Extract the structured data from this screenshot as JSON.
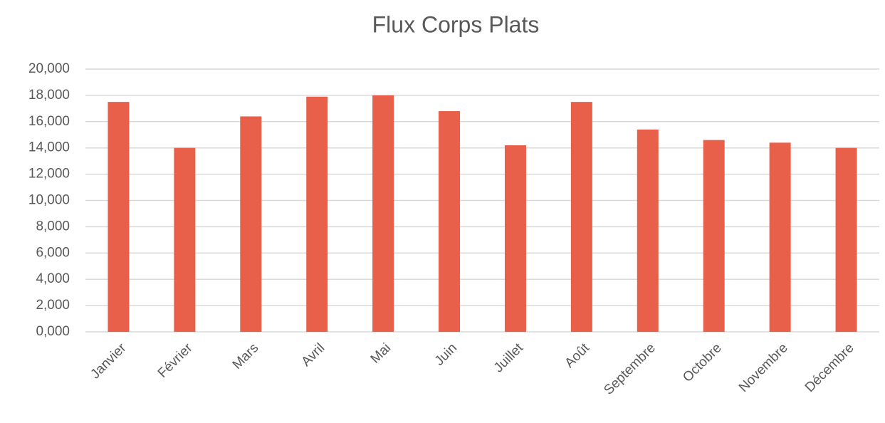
{
  "chart_data": {
    "type": "bar",
    "title": "Flux Corps Plats",
    "categories": [
      "Janvier",
      "Février",
      "Mars",
      "Avril",
      "Mai",
      "Juin",
      "Juillet",
      "Août",
      "Septembre",
      "Octobre",
      "Novembre",
      "Décembre"
    ],
    "values": [
      17.5,
      14.0,
      16.4,
      17.9,
      18.0,
      16.8,
      14.2,
      17.5,
      15.4,
      14.6,
      14.4,
      14.0
    ],
    "color": "#e8604a",
    "ylim": [
      0,
      20
    ],
    "yticks": [
      {
        "value": 0,
        "label": "0,000"
      },
      {
        "value": 2,
        "label": "2,000"
      },
      {
        "value": 4,
        "label": "4,000"
      },
      {
        "value": 6,
        "label": "6,000"
      },
      {
        "value": 8,
        "label": "8,000"
      },
      {
        "value": 10,
        "label": "10,000"
      },
      {
        "value": 12,
        "label": "12,000"
      },
      {
        "value": 14,
        "label": "14,000"
      },
      {
        "value": 16,
        "label": "16,000"
      },
      {
        "value": 18,
        "label": "18,000"
      },
      {
        "value": 20,
        "label": "20,000"
      }
    ],
    "grid": true
  }
}
